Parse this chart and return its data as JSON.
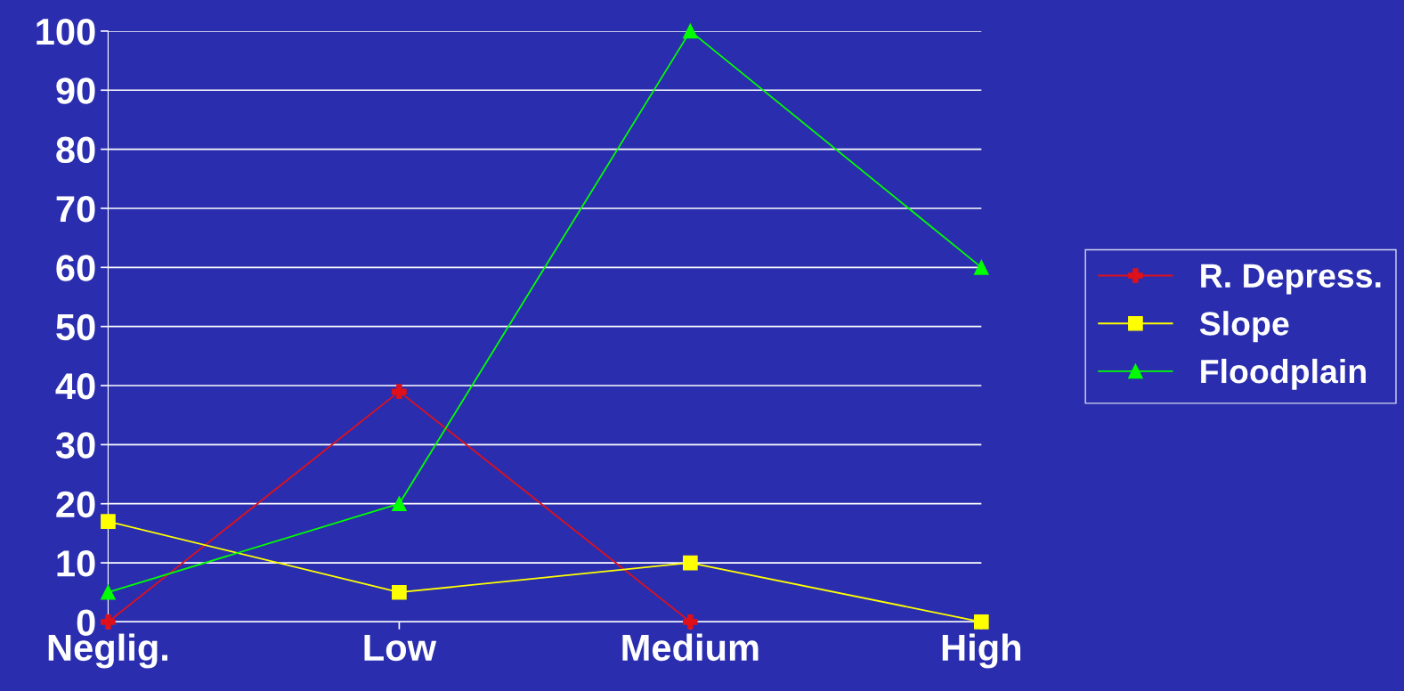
{
  "chart_data": {
    "type": "line",
    "categories": [
      "Neglig.",
      "Low",
      "Medium",
      "High"
    ],
    "series": [
      {
        "name": "R. Depress.",
        "color": "#e0101a",
        "marker": "cross",
        "values": [
          0,
          39,
          0,
          null
        ]
      },
      {
        "name": "Slope",
        "color": "#ffff00",
        "marker": "square",
        "values": [
          17,
          5,
          10,
          0
        ]
      },
      {
        "name": "Floodplain",
        "color": "#00ff00",
        "marker": "triangle",
        "values": [
          5,
          20,
          100,
          60
        ]
      }
    ],
    "ylim": [
      0,
      100
    ],
    "yticks": [
      0,
      10,
      20,
      30,
      40,
      50,
      60,
      70,
      80,
      90,
      100
    ],
    "grid": "y",
    "legend": "right",
    "line_style": "solid"
  }
}
